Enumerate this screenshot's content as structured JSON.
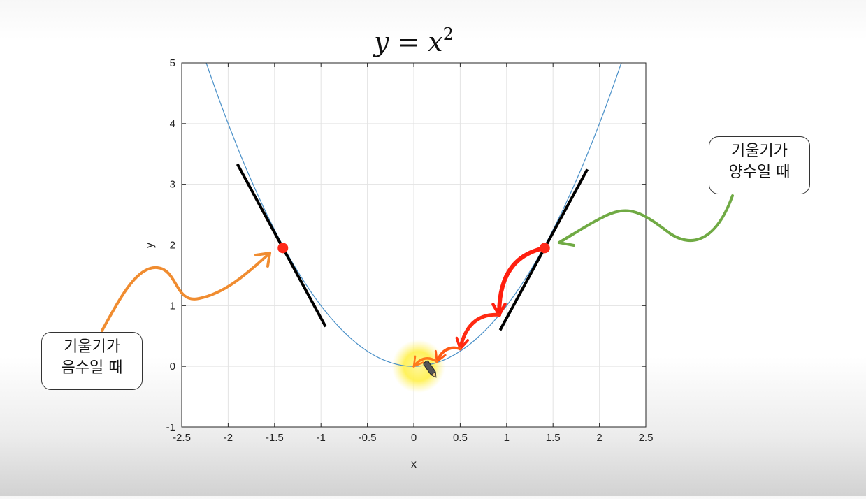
{
  "chart_data": {
    "type": "line",
    "title_var": "y",
    "title_eq": "=",
    "title_base": "x",
    "title_exp": "2",
    "xlabel": "x",
    "ylabel": "y",
    "xlim": [
      -2.5,
      2.5
    ],
    "ylim": [
      -1,
      5
    ],
    "xticks": [
      -2.5,
      -2,
      -1.5,
      -1,
      -0.5,
      0,
      0.5,
      1,
      1.5,
      2,
      2.5
    ],
    "xtick_labels": [
      "-2.5",
      "-2",
      "-1.5",
      "-1",
      "-0.5",
      "0",
      "0.5",
      "1",
      "1.5",
      "2",
      "2.5"
    ],
    "yticks": [
      -1,
      0,
      1,
      2,
      3,
      4,
      5
    ],
    "ytick_labels": [
      "-1",
      "0",
      "1",
      "2",
      "3",
      "4",
      "5"
    ],
    "grid": true,
    "curve": {
      "function": "x^2",
      "color": "#4a90c8"
    },
    "points": [
      {
        "x": -1.41,
        "y": 1.95,
        "color": "#ff2a1a"
      },
      {
        "x": 1.41,
        "y": 1.95,
        "color": "#ff2a1a"
      }
    ],
    "tangent_lines": [
      {
        "x_from": -1.9,
        "x_to": -0.95,
        "slope": -2.82,
        "through": [
          -1.41,
          1.95
        ],
        "color": "#000000"
      },
      {
        "x_from": 0.93,
        "x_to": 1.87,
        "slope": 2.82,
        "through": [
          1.41,
          1.95
        ],
        "color": "#000000"
      }
    ],
    "descent_steps": [
      {
        "x_from": 1.41,
        "y_from": 1.95,
        "x_to": 0.92,
        "y_to": 0.85
      },
      {
        "x_from": 0.92,
        "y_from": 0.85,
        "x_to": 0.5,
        "y_to": 0.29
      },
      {
        "x_from": 0.5,
        "y_from": 0.29,
        "x_to": 0.25,
        "y_to": 0.08
      },
      {
        "x_from": 0.25,
        "y_from": 0.08,
        "x_to": 0.0,
        "y_to": 0.0
      }
    ],
    "highlight": {
      "x": 0.05,
      "y": 0.0,
      "color": "#ffee33"
    }
  },
  "annotations": {
    "positive": {
      "line1": "기울기가",
      "line2": "양수일 때",
      "arrow_color": "#70aa44"
    },
    "negative": {
      "line1": "기울기가",
      "line2": "음수일 때",
      "arrow_color": "#f08c30"
    }
  }
}
